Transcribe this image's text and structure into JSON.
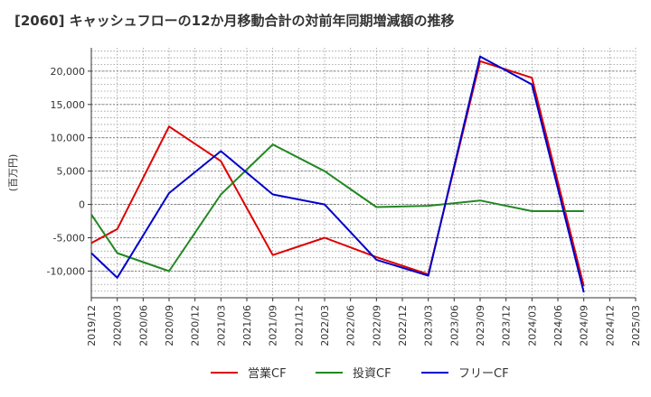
{
  "chart_data": {
    "type": "line",
    "title": "[2060]  キャッシュフローの12か月移動合計の対前年同期増減額の推移",
    "ylabel": "(百万円)",
    "xlabel": "",
    "ylim": [
      -14000,
      23500
    ],
    "yticks": [
      -10000,
      -5000,
      0,
      5000,
      10000,
      15000,
      20000
    ],
    "ytick_labels": [
      "-10,000",
      "-5,000",
      "0",
      "5,000",
      "10,000",
      "15,000",
      "20,000"
    ],
    "categories": [
      "2019/12",
      "2020/03",
      "2020/06",
      "2020/09",
      "2020/12",
      "2021/03",
      "2021/06",
      "2021/09",
      "2021/12",
      "2022/03",
      "2022/06",
      "2022/09",
      "2022/12",
      "2023/03",
      "2023/06",
      "2023/09",
      "2023/12",
      "2024/03",
      "2024/06",
      "2024/09",
      "2024/12",
      "2025/03"
    ],
    "grid": true,
    "legend_position": "bottom",
    "series": [
      {
        "name": "営業CF",
        "color": "#dd0000",
        "points": [
          [
            "2019/12",
            -5800
          ],
          [
            "2020/03",
            -3700
          ],
          [
            "2020/09",
            11700
          ],
          [
            "2021/03",
            6500
          ],
          [
            "2021/09",
            -7600
          ],
          [
            "2022/03",
            -5000
          ],
          [
            "2022/09",
            -7900
          ],
          [
            "2023/03",
            -10500
          ],
          [
            "2023/09",
            21500
          ],
          [
            "2024/03",
            19000
          ],
          [
            "2024/09",
            -12300
          ]
        ]
      },
      {
        "name": "投資CF",
        "color": "#228822",
        "points": [
          [
            "2019/12",
            -1500
          ],
          [
            "2020/03",
            -7300
          ],
          [
            "2020/09",
            -10000
          ],
          [
            "2021/03",
            1500
          ],
          [
            "2021/09",
            9000
          ],
          [
            "2022/03",
            5000
          ],
          [
            "2022/09",
            -400
          ],
          [
            "2023/03",
            -200
          ],
          [
            "2023/09",
            600
          ],
          [
            "2024/03",
            -1000
          ],
          [
            "2024/09",
            -1000
          ]
        ]
      },
      {
        "name": "フリーCF",
        "color": "#0000cc",
        "points": [
          [
            "2019/12",
            -7300
          ],
          [
            "2020/03",
            -11000
          ],
          [
            "2020/09",
            1700
          ],
          [
            "2021/03",
            8000
          ],
          [
            "2021/09",
            1500
          ],
          [
            "2022/03",
            0
          ],
          [
            "2022/09",
            -8300
          ],
          [
            "2023/03",
            -10700
          ],
          [
            "2023/09",
            22200
          ],
          [
            "2024/03",
            18000
          ],
          [
            "2024/09",
            -13200
          ]
        ]
      }
    ]
  }
}
